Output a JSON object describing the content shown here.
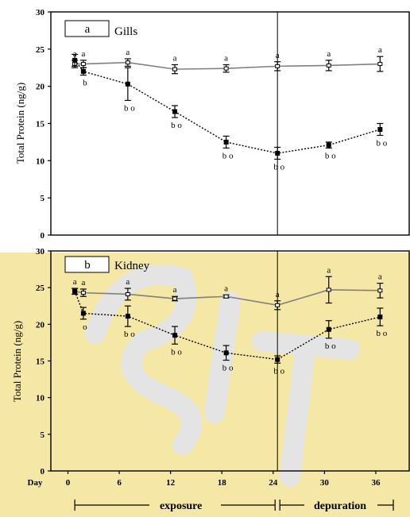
{
  "colors": {
    "axis": "#000000",
    "line_open": "#808080",
    "line_dashed": "#000000",
    "watermark_band": "#f5e7a6",
    "watermark_mark": "#e4e4e4"
  },
  "chart_data": [
    {
      "type": "line",
      "panel_letter": "a",
      "title": "Gills",
      "ylabel": "Total Protein (ng/g)",
      "ylim": [
        0,
        30
      ],
      "yticks": [
        "0",
        "5",
        "10",
        "15",
        "20",
        "25",
        "30"
      ],
      "xlim": [
        -2,
        40
      ],
      "divider_x": 24.5,
      "series": [
        {
          "style": "open",
          "x": [
            0.8,
            1.8,
            7,
            12.5,
            18.5,
            24.5,
            30.5,
            36.5
          ],
          "y": [
            23.0,
            23.0,
            23.2,
            22.3,
            22.4,
            22.7,
            22.8,
            23.0
          ],
          "err": [
            0.5,
            0.5,
            0.5,
            0.6,
            0.5,
            0.6,
            0.7,
            1.0
          ],
          "labels": [
            "a",
            "a",
            "a",
            "a",
            "a",
            "a",
            "a",
            "a"
          ]
        },
        {
          "style": "filled-dashed",
          "x": [
            0.8,
            1.8,
            7,
            12.5,
            18.5,
            24.5,
            30.5,
            36.5
          ],
          "y": [
            23.5,
            22.0,
            20.3,
            16.6,
            12.5,
            11.0,
            12.1,
            14.2
          ],
          "err": [
            0.8,
            0.5,
            2.2,
            0.8,
            0.8,
            0.8,
            0.4,
            0.8
          ],
          "labels": [
            "",
            "b",
            "b o",
            "b o",
            "b o",
            "b o",
            "b o",
            "b o"
          ]
        }
      ]
    },
    {
      "type": "line",
      "panel_letter": "b",
      "title": "Kidney",
      "ylabel": "Total Protein (ng/g)",
      "ylim": [
        0,
        30
      ],
      "yticks": [
        "0",
        "5",
        "10",
        "15",
        "20",
        "25",
        "30"
      ],
      "xlim": [
        -2,
        40
      ],
      "xlabel": "Day",
      "xticks": [
        0,
        6,
        12,
        18,
        24,
        30,
        36
      ],
      "xtick_labels": [
        "0",
        "6",
        "12",
        "18",
        "24",
        "30",
        "36"
      ],
      "divider_x": 24.5,
      "series": [
        {
          "style": "open",
          "x": [
            0.8,
            1.8,
            7,
            12.5,
            18.5,
            24.5,
            30.5,
            36.5
          ],
          "y": [
            24.5,
            24.3,
            24.1,
            23.5,
            23.8,
            22.6,
            24.7,
            24.6
          ],
          "err": [
            0.4,
            0.5,
            0.8,
            0.3,
            0.2,
            0.6,
            1.8,
            1.0
          ],
          "labels": [
            "a",
            "a",
            "a",
            "a",
            "a",
            "a",
            "a",
            "a"
          ]
        },
        {
          "style": "filled-dashed",
          "x": [
            0.8,
            1.8,
            7,
            12.5,
            18.5,
            24.5,
            30.5,
            36.5
          ],
          "y": [
            24.5,
            21.5,
            21.1,
            18.5,
            16.1,
            15.2,
            19.3,
            21.0
          ],
          "err": [
            0.4,
            0.8,
            1.4,
            1.2,
            1.0,
            0.5,
            1.2,
            1.2
          ],
          "labels": [
            "",
            "o",
            "b o",
            "b o",
            "b o",
            "b o",
            "b o",
            "b o"
          ]
        }
      ],
      "phases": [
        {
          "label": "exposure",
          "from": 0.8,
          "to": 24.5
        },
        {
          "label": "depuration",
          "from": 24.5,
          "to": 40
        }
      ]
    }
  ]
}
